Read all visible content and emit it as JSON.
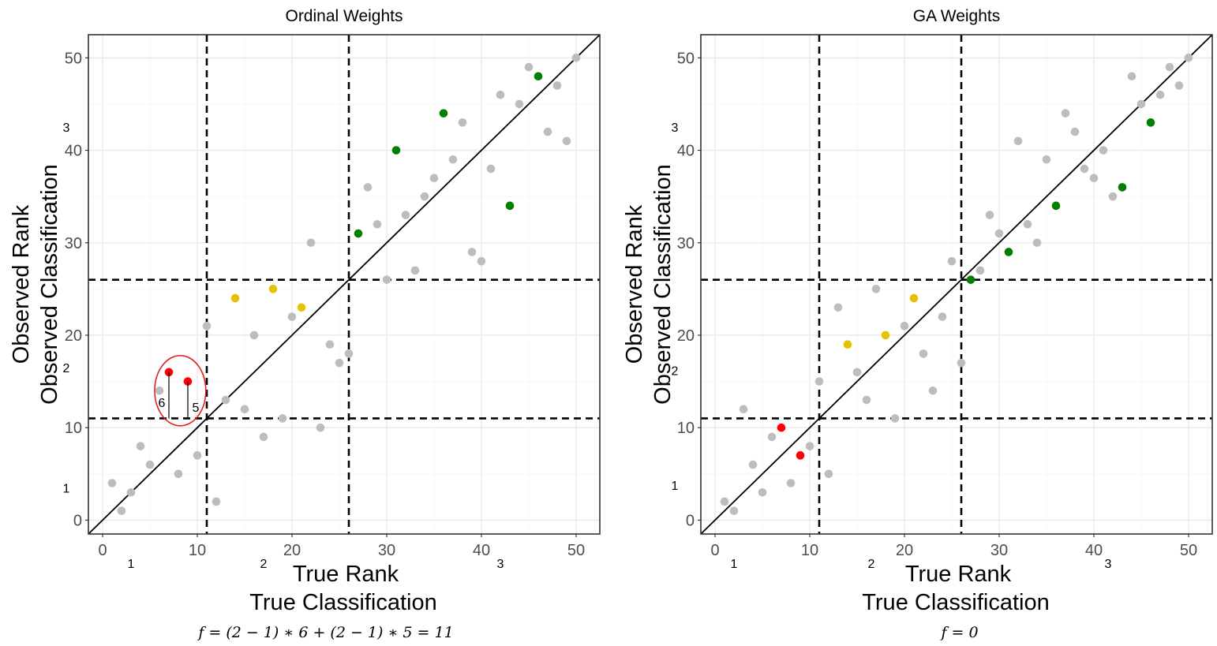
{
  "chart_data": [
    {
      "type": "scatter",
      "title": "Ordinal Weights",
      "xlabel": [
        "True Rank",
        "True Classification"
      ],
      "ylabel": [
        "Observed Rank",
        "Observed Classification"
      ],
      "xlim": [
        -1.5,
        52.5
      ],
      "ylim": [
        -1.5,
        52.5
      ],
      "x_ticks": [
        0,
        10,
        20,
        30,
        40,
        50
      ],
      "y_ticks": [
        0,
        10,
        20,
        30,
        40,
        50
      ],
      "grid": true,
      "class_labels_x": [
        {
          "text": "1",
          "x": 3
        },
        {
          "text": "2",
          "x": 17
        },
        {
          "text": "3",
          "x": 42
        }
      ],
      "class_labels_y": [
        {
          "text": "1",
          "y": 3.5
        },
        {
          "text": "2",
          "y": 16.5
        },
        {
          "text": "3",
          "y": 42.5
        }
      ],
      "thresholds_x": [
        11,
        26
      ],
      "thresholds_y": [
        11,
        26
      ],
      "reference_line": "y = x",
      "formula": "𝑓 = (2 − 1) ∗ 6 + (2 − 1) ∗ 5 = 11",
      "annotation": {
        "ellipse_center": [
          8.2,
          14
        ],
        "ellipse_radii": [
          2.7,
          3.8
        ],
        "distances": [
          {
            "x": 7,
            "y_from": 11,
            "y_to": 16,
            "label": "6"
          },
          {
            "x": 9,
            "y_from": 11,
            "y_to": 15,
            "label": "5"
          }
        ]
      },
      "series": [
        {
          "color": "#bdbdbd",
          "points": [
            [
              1,
              4
            ],
            [
              2,
              1
            ],
            [
              3,
              3
            ],
            [
              4,
              8
            ],
            [
              5,
              6
            ],
            [
              6,
              14
            ],
            [
              8,
              5
            ],
            [
              10,
              7
            ],
            [
              11,
              21
            ],
            [
              12,
              2
            ],
            [
              13,
              13
            ],
            [
              15,
              12
            ],
            [
              16,
              20
            ],
            [
              17,
              9
            ],
            [
              19,
              11
            ],
            [
              20,
              22
            ],
            [
              22,
              30
            ],
            [
              23,
              10
            ],
            [
              24,
              19
            ],
            [
              25,
              17
            ],
            [
              26,
              18
            ],
            [
              28,
              36
            ],
            [
              29,
              32
            ],
            [
              30,
              26
            ],
            [
              32,
              33
            ],
            [
              33,
              27
            ],
            [
              34,
              35
            ],
            [
              35,
              37
            ],
            [
              37,
              39
            ],
            [
              38,
              43
            ],
            [
              39,
              29
            ],
            [
              40,
              28
            ],
            [
              41,
              38
            ],
            [
              42,
              46
            ],
            [
              44,
              45
            ],
            [
              45,
              49
            ],
            [
              47,
              42
            ],
            [
              48,
              47
            ],
            [
              49,
              41
            ],
            [
              50,
              50
            ]
          ]
        },
        {
          "color": "#ff0000",
          "points": [
            [
              7,
              16
            ],
            [
              9,
              15
            ]
          ]
        },
        {
          "color": "#e6c200",
          "points": [
            [
              14,
              24
            ],
            [
              18,
              25
            ],
            [
              21,
              23
            ]
          ]
        },
        {
          "color": "#008000",
          "points": [
            [
              27,
              31
            ],
            [
              31,
              40
            ],
            [
              36,
              44
            ],
            [
              43,
              34
            ],
            [
              46,
              48
            ]
          ]
        }
      ]
    },
    {
      "type": "scatter",
      "title": "GA Weights",
      "xlabel": [
        "True Rank",
        "True Classification"
      ],
      "ylabel": [
        "Observed Rank",
        "Observed Classification"
      ],
      "xlim": [
        -1.5,
        52.5
      ],
      "ylim": [
        -1.5,
        52.5
      ],
      "x_ticks": [
        0,
        10,
        20,
        30,
        40,
        50
      ],
      "y_ticks": [
        0,
        10,
        20,
        30,
        40,
        50
      ],
      "grid": true,
      "class_labels_x": [
        {
          "text": "1",
          "x": 2
        },
        {
          "text": "2",
          "x": 16.5
        },
        {
          "text": "3",
          "x": 41.5
        }
      ],
      "class_labels_y": [
        {
          "text": "1",
          "y": 3.8
        },
        {
          "text": "2",
          "y": 16.2
        },
        {
          "text": "3",
          "y": 42.5
        }
      ],
      "thresholds_x": [
        11,
        26
      ],
      "thresholds_y": [
        11,
        26
      ],
      "reference_line": "y = x",
      "formula": "𝑓 = 0",
      "series": [
        {
          "color": "#bdbdbd",
          "points": [
            [
              1,
              2
            ],
            [
              2,
              1
            ],
            [
              3,
              12
            ],
            [
              4,
              6
            ],
            [
              5,
              3
            ],
            [
              6,
              9
            ],
            [
              8,
              4
            ],
            [
              10,
              8
            ],
            [
              11,
              15
            ],
            [
              12,
              5
            ],
            [
              13,
              23
            ],
            [
              15,
              16
            ],
            [
              16,
              13
            ],
            [
              17,
              25
            ],
            [
              19,
              11
            ],
            [
              20,
              21
            ],
            [
              22,
              18
            ],
            [
              23,
              14
            ],
            [
              24,
              22
            ],
            [
              25,
              28
            ],
            [
              26,
              17
            ],
            [
              28,
              27
            ],
            [
              29,
              33
            ],
            [
              30,
              31
            ],
            [
              32,
              41
            ],
            [
              33,
              32
            ],
            [
              34,
              30
            ],
            [
              35,
              39
            ],
            [
              37,
              44
            ],
            [
              38,
              42
            ],
            [
              39,
              38
            ],
            [
              40,
              37
            ],
            [
              41,
              40
            ],
            [
              42,
              35
            ],
            [
              44,
              48
            ],
            [
              45,
              45
            ],
            [
              47,
              46
            ],
            [
              48,
              49
            ],
            [
              49,
              47
            ],
            [
              50,
              50
            ]
          ]
        },
        {
          "color": "#ff0000",
          "points": [
            [
              7,
              10
            ],
            [
              9,
              7
            ]
          ]
        },
        {
          "color": "#e6c200",
          "points": [
            [
              14,
              19
            ],
            [
              18,
              20
            ],
            [
              21,
              24
            ]
          ]
        },
        {
          "color": "#008000",
          "points": [
            [
              27,
              26
            ],
            [
              31,
              29
            ],
            [
              36,
              34
            ],
            [
              43,
              36
            ],
            [
              46,
              43
            ]
          ]
        }
      ]
    }
  ]
}
